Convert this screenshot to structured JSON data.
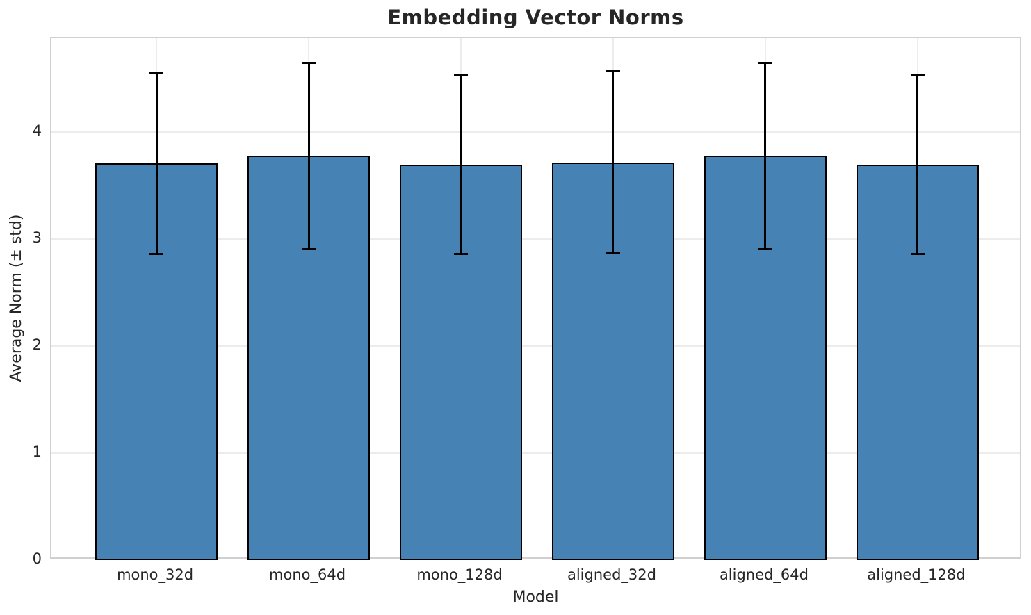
{
  "chart_data": {
    "type": "bar",
    "title": "Embedding Vector Norms",
    "xlabel": "Model",
    "ylabel": "Average Norm (± std)",
    "categories": [
      "mono_32d",
      "mono_64d",
      "mono_128d",
      "aligned_32d",
      "aligned_64d",
      "aligned_128d"
    ],
    "values": [
      3.71,
      3.78,
      3.7,
      3.72,
      3.78,
      3.7
    ],
    "errors": [
      0.85,
      0.87,
      0.84,
      0.85,
      0.87,
      0.84
    ],
    "ylim": [
      0,
      4.88
    ],
    "yticks": [
      0,
      1,
      2,
      3,
      4
    ],
    "grid": true,
    "legend_position": "none",
    "colors": {
      "bar_fill": "#4682b4",
      "bar_edge": "#000000",
      "error_bar": "#000000",
      "gridline": "#ececec",
      "spine": "#d0d0d0",
      "text": "#262626",
      "background": "#ffffff"
    }
  }
}
